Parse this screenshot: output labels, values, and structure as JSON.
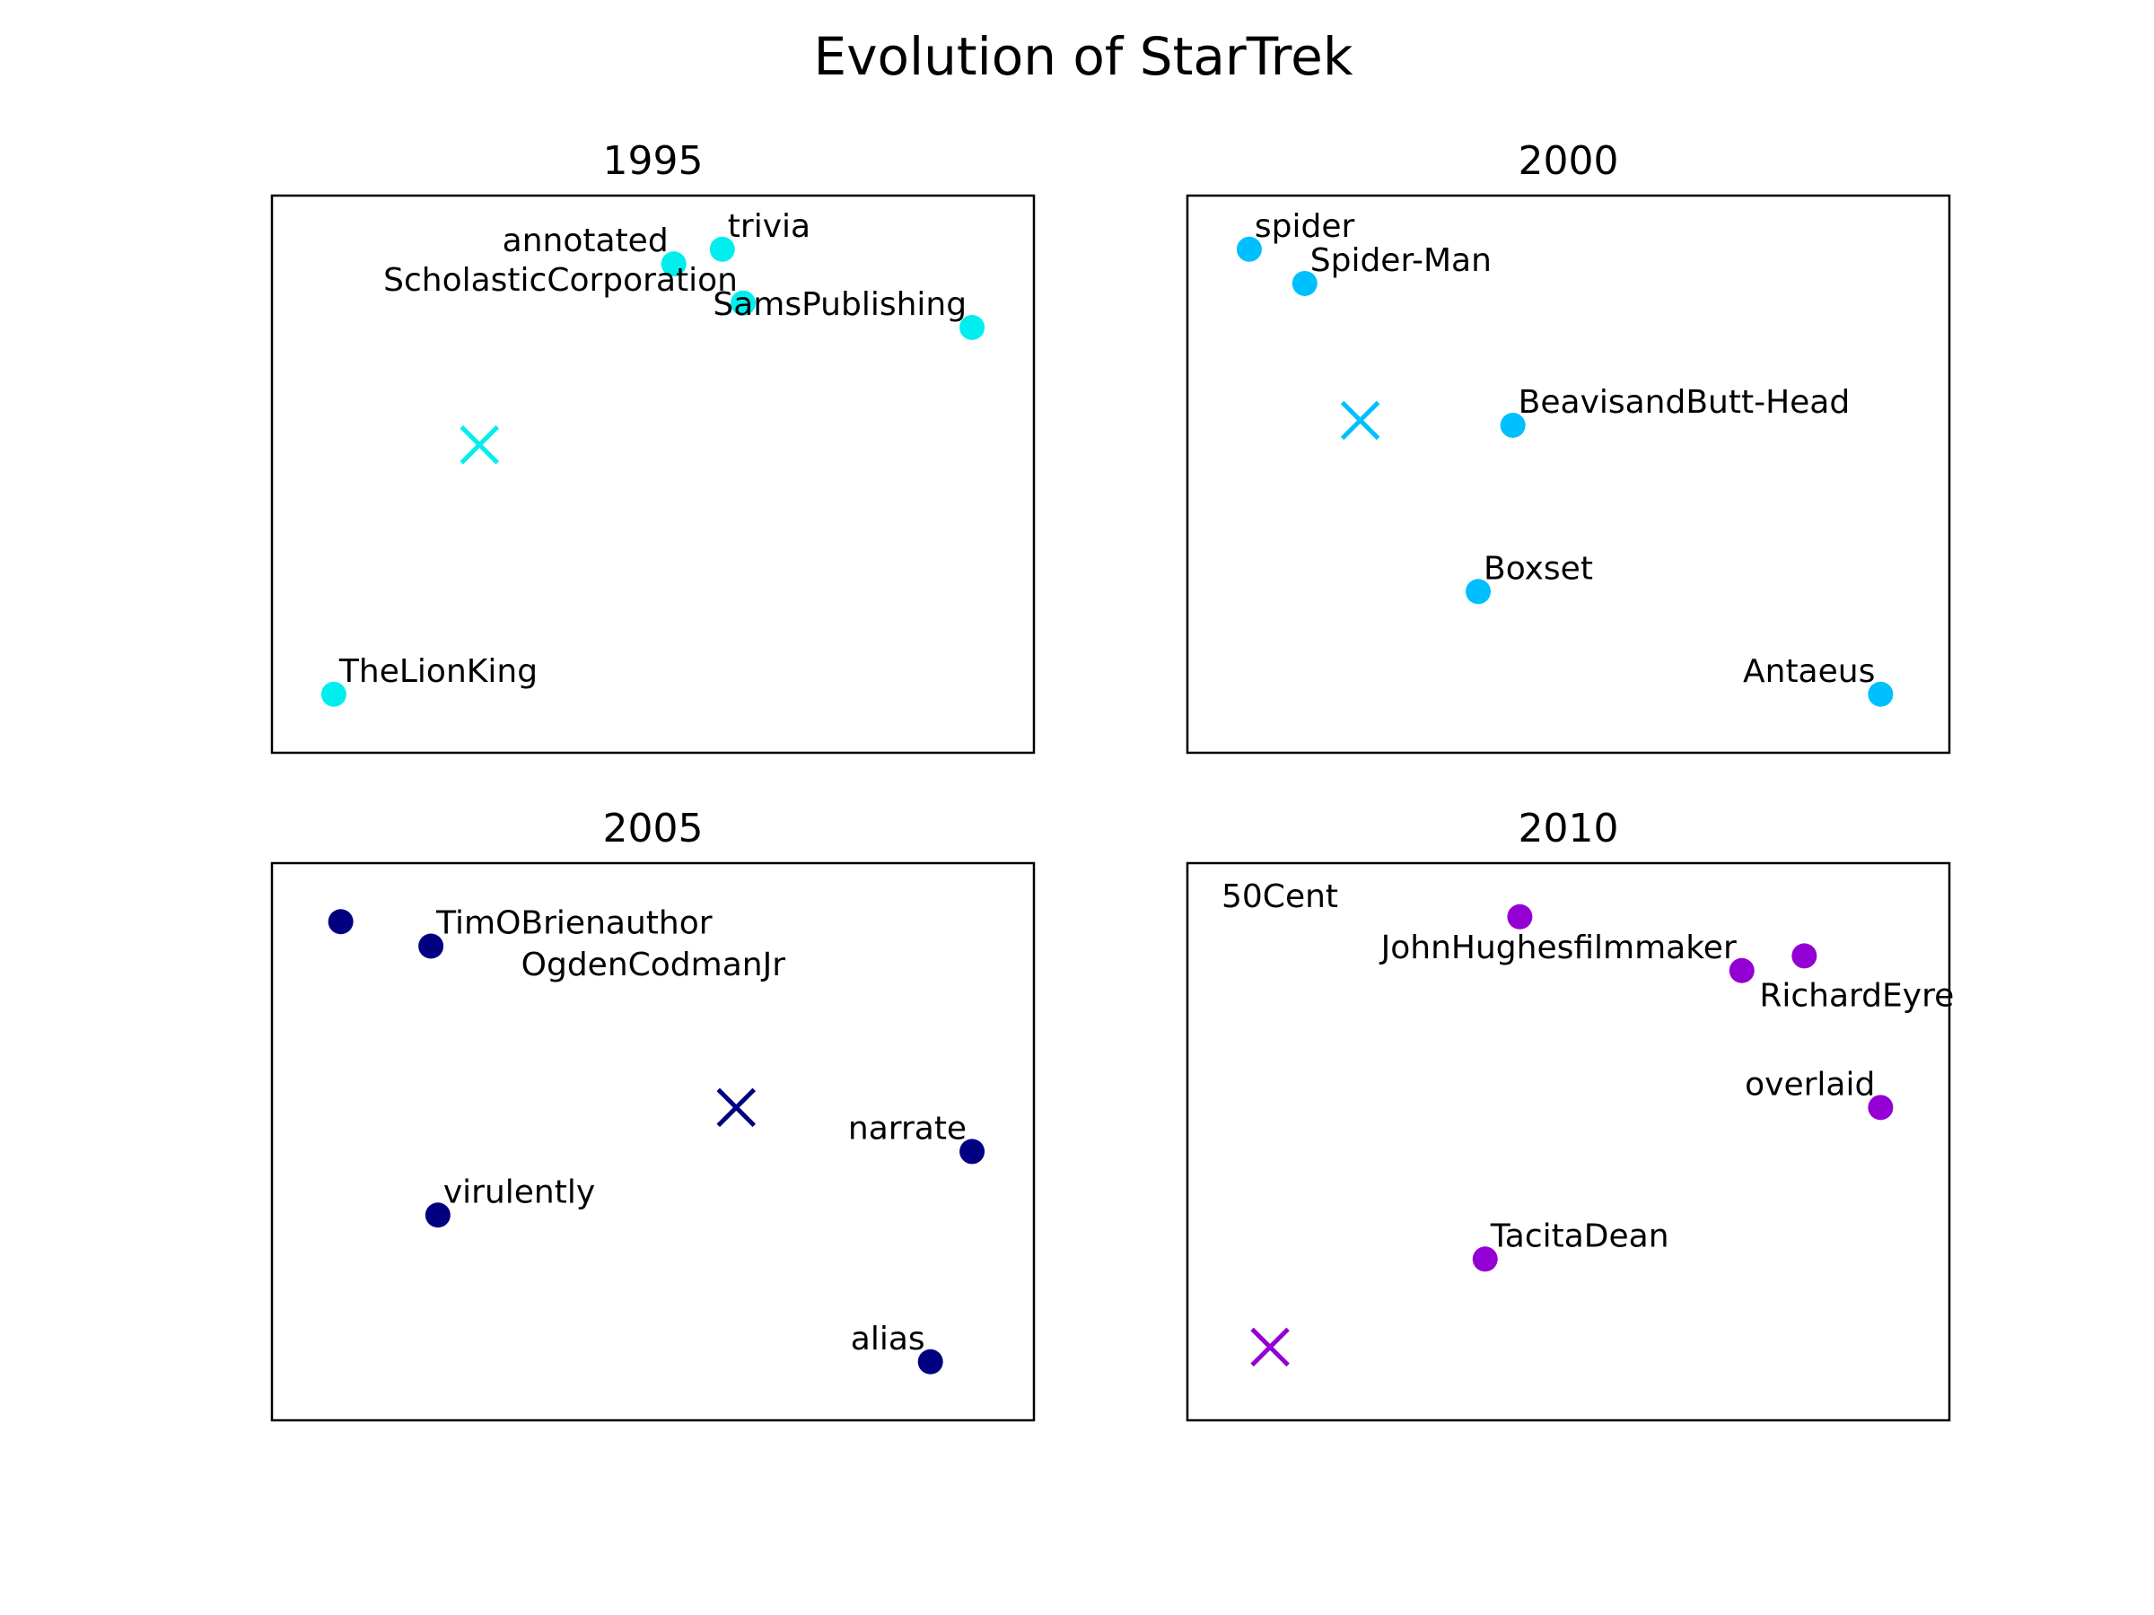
{
  "title": "Evolution of StarTrek",
  "chart_data": [
    {
      "type": "scatter",
      "title": "1995",
      "color": "#00eeee",
      "xlim": [
        0,
        1
      ],
      "ylim": [
        0,
        1
      ],
      "grid": false,
      "ticks": false,
      "points": [
        {
          "label": "annotated",
          "x": 0.53,
          "y": 0.93,
          "label_side": "left"
        },
        {
          "label": "trivia",
          "x": 0.6,
          "y": 0.96,
          "label_side": "right"
        },
        {
          "label": "ScholasticCorporation",
          "x": 0.63,
          "y": 0.85,
          "label_side": "left"
        },
        {
          "label": "SamsPublishing",
          "x": 0.96,
          "y": 0.8,
          "label_side": "left"
        },
        {
          "label": "TheLionKing",
          "x": 0.04,
          "y": 0.05,
          "label_side": "right"
        }
      ],
      "center": {
        "x": 0.25,
        "y": 0.56
      }
    },
    {
      "type": "scatter",
      "title": "2000",
      "color": "#00bfff",
      "xlim": [
        0,
        1
      ],
      "ylim": [
        0,
        1
      ],
      "grid": false,
      "ticks": false,
      "points": [
        {
          "label": "spider",
          "x": 0.04,
          "y": 0.96,
          "label_side": "right"
        },
        {
          "label": "Spider-Man",
          "x": 0.12,
          "y": 0.89,
          "label_side": "right"
        },
        {
          "label": "BeavisandButt-Head",
          "x": 0.42,
          "y": 0.6,
          "label_side": "right"
        },
        {
          "label": "Boxset",
          "x": 0.37,
          "y": 0.26,
          "label_side": "right"
        },
        {
          "label": "Antaeus",
          "x": 0.95,
          "y": 0.05,
          "label_side": "left"
        }
      ],
      "center": {
        "x": 0.2,
        "y": 0.61
      }
    },
    {
      "type": "scatter",
      "title": "2005",
      "color": "#000080",
      "xlim": [
        0,
        1
      ],
      "ylim": [
        0,
        1
      ],
      "grid": false,
      "ticks": false,
      "points": [
        {
          "label": "",
          "x": 0.05,
          "y": 0.95,
          "label_side": "right"
        },
        {
          "label": "TimOBrienauthor",
          "x": 0.18,
          "y": 0.9,
          "label_side": "right"
        },
        {
          "label": "OgdenCodmanJr",
          "x": 0.31,
          "y": 0.84,
          "label_side": "text-only"
        },
        {
          "label": "narrate",
          "x": 0.96,
          "y": 0.48,
          "label_side": "left"
        },
        {
          "label": "virulently",
          "x": 0.19,
          "y": 0.35,
          "label_side": "right"
        },
        {
          "label": "alias",
          "x": 0.9,
          "y": 0.05,
          "label_side": "left"
        }
      ],
      "center": {
        "x": 0.62,
        "y": 0.57
      }
    },
    {
      "type": "scatter",
      "title": "2010",
      "color": "#9400d3",
      "xlim": [
        0,
        1
      ],
      "ylim": [
        0,
        1
      ],
      "grid": false,
      "ticks": false,
      "points": [
        {
          "label": "50Cent",
          "x": 0.0,
          "y": 0.98,
          "label_side": "text-only"
        },
        {
          "label": "",
          "x": 0.43,
          "y": 0.96,
          "label_side": "right"
        },
        {
          "label": "JohnHughesfilmmaker",
          "x": 0.75,
          "y": 0.85,
          "label_side": "left"
        },
        {
          "label": "RichardEyre",
          "x": 0.84,
          "y": 0.88,
          "label_side": "below-left"
        },
        {
          "label": "overlaid",
          "x": 0.95,
          "y": 0.57,
          "label_side": "left"
        },
        {
          "label": "TacitaDean",
          "x": 0.38,
          "y": 0.26,
          "label_side": "right"
        }
      ],
      "center": {
        "x": 0.07,
        "y": 0.08
      }
    }
  ]
}
